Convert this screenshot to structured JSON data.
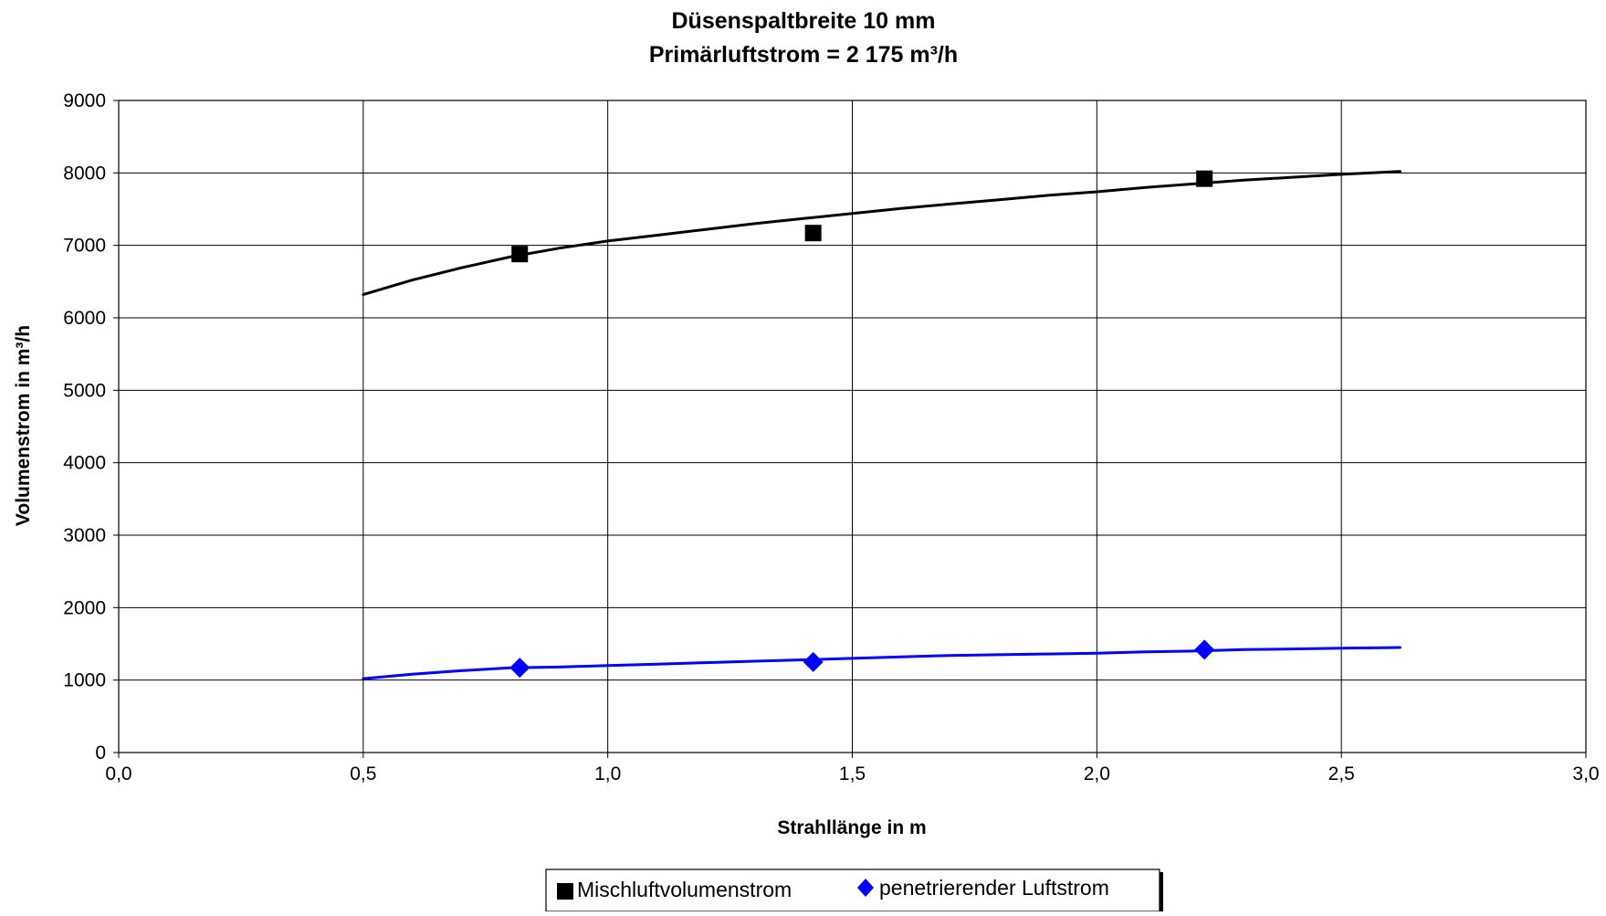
{
  "chart_data": {
    "type": "line",
    "title": "Düsenspaltbreite 10 mm",
    "subtitle": "Primärluftstrom = 2 175 m³/h",
    "xlabel": "Strahllänge in m",
    "ylabel": "Volumenstrom in m³/h",
    "xlim": [
      0,
      3
    ],
    "ylim": [
      0,
      9000
    ],
    "x_ticks": [
      0,
      0.5,
      1,
      1.5,
      2,
      2.5,
      3
    ],
    "x_tick_labels": [
      "0,0",
      "0,5",
      "1,0",
      "1,5",
      "2,0",
      "2,5",
      "3,0"
    ],
    "y_ticks": [
      0,
      1000,
      2000,
      3000,
      4000,
      5000,
      6000,
      7000,
      8000,
      9000
    ],
    "y_tick_labels": [
      "0",
      "1000",
      "2000",
      "3000",
      "4000",
      "5000",
      "6000",
      "7000",
      "8000",
      "9000"
    ],
    "grid": true,
    "legend_position": "bottom-center",
    "series": [
      {
        "name": "Mischluftvolumenstrom",
        "color": "#000000",
        "marker": "square",
        "points": {
          "x": [
            0.82,
            1.42,
            2.22
          ],
          "y": [
            6880,
            7170,
            7920
          ]
        },
        "curve": {
          "x": [
            0.5,
            0.6,
            0.7,
            0.8,
            0.9,
            1.0,
            1.1,
            1.2,
            1.3,
            1.4,
            1.5,
            1.6,
            1.7,
            1.8,
            1.9,
            2.0,
            2.1,
            2.2,
            2.3,
            2.4,
            2.5,
            2.62
          ],
          "y": [
            6320,
            6520,
            6690,
            6840,
            6960,
            7060,
            7140,
            7220,
            7300,
            7370,
            7440,
            7510,
            7570,
            7630,
            7690,
            7740,
            7800,
            7850,
            7900,
            7940,
            7980,
            8020
          ]
        }
      },
      {
        "name": "penetrierender Luftstrom",
        "color": "#0000ff",
        "marker": "diamond",
        "points": {
          "x": [
            0.82,
            1.42,
            2.22
          ],
          "y": [
            1170,
            1250,
            1420
          ]
        },
        "curve": {
          "x": [
            0.5,
            0.6,
            0.7,
            0.8,
            0.9,
            1.0,
            1.1,
            1.2,
            1.3,
            1.4,
            1.5,
            1.6,
            1.7,
            1.8,
            1.9,
            2.0,
            2.1,
            2.2,
            2.3,
            2.4,
            2.5,
            2.62
          ],
          "y": [
            1020,
            1080,
            1130,
            1170,
            1180,
            1200,
            1220,
            1240,
            1260,
            1280,
            1300,
            1320,
            1340,
            1350,
            1360,
            1370,
            1390,
            1400,
            1420,
            1430,
            1440,
            1450
          ]
        }
      }
    ]
  }
}
